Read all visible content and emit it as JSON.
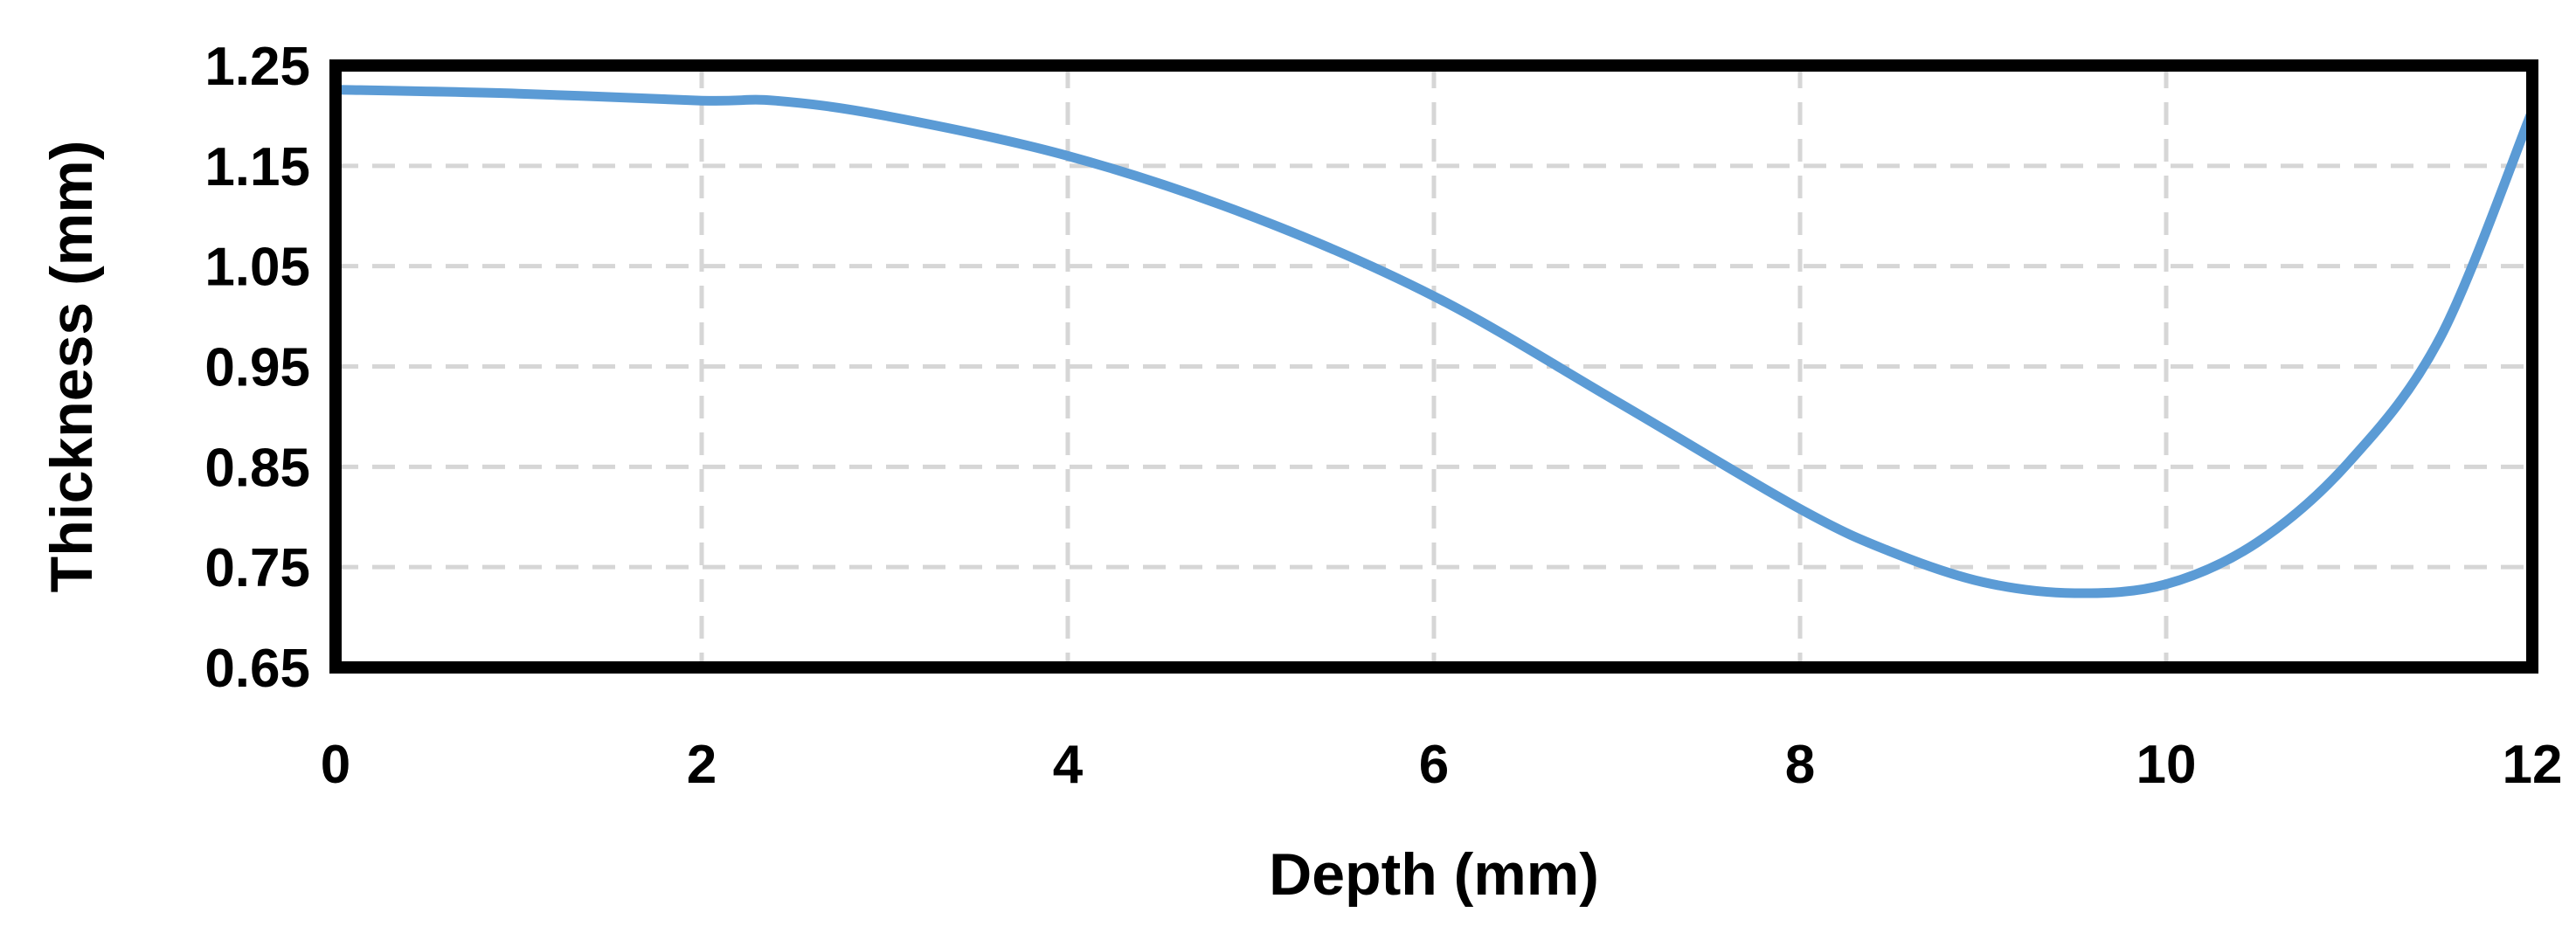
{
  "chart_data": {
    "type": "line",
    "title": "",
    "xlabel": "Depth (mm)",
    "ylabel": "Thickness (mm)",
    "xlim": [
      0,
      12
    ],
    "ylim": [
      0.65,
      1.25
    ],
    "x_ticks": [
      0,
      2,
      4,
      6,
      8,
      10,
      12
    ],
    "y_ticks": [
      0.65,
      0.75,
      0.85,
      0.95,
      1.05,
      1.15,
      1.25
    ],
    "x_tick_labels": [
      "0",
      "2",
      "4",
      "6",
      "8",
      "10",
      "12"
    ],
    "y_tick_labels": [
      "0.65",
      "0.75",
      "0.85",
      "0.95",
      "1.05",
      "1.15",
      "1.25"
    ],
    "grid": true,
    "legend": false,
    "series": [
      {
        "color": "#5b9bd5",
        "x": [
          0,
          1,
          2,
          2.4,
          3,
          4,
          5,
          6,
          7,
          8,
          8.5,
          9,
          9.5,
          10,
          10.5,
          11,
          11.5,
          12
        ],
        "y": [
          1.226,
          1.222,
          1.215,
          1.215,
          1.2,
          1.16,
          1.1,
          1.02,
          0.915,
          0.808,
          0.765,
          0.735,
          0.724,
          0.733,
          0.775,
          0.855,
          0.98,
          1.205
        ]
      }
    ]
  }
}
